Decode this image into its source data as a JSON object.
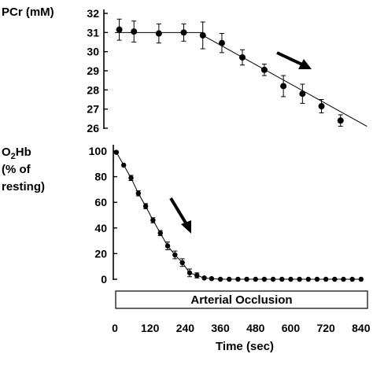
{
  "chart_data": [
    {
      "type": "line",
      "ylabel": "PCr (mM)",
      "ylim": [
        26,
        32
      ],
      "yticks": [
        26,
        27,
        28,
        29,
        30,
        31,
        32
      ],
      "xlim": [
        0,
        870
      ],
      "x": [
        0,
        45,
        105,
        165,
        225,
        285,
        345,
        405,
        465,
        525,
        585,
        645,
        705,
        765,
        825
      ],
      "series": [
        {
          "values": [
            31.15,
            31.05,
            30.95,
            31.0,
            30.85,
            null,
            30.45,
            29.7,
            29.05,
            28.2,
            27.8,
            27.15,
            26.4
          ],
          "x": [
            15,
            65,
            150,
            235,
            300,
            null,
            365,
            435,
            510,
            575,
            640,
            705,
            770
          ],
          "error": [
            0.55,
            0.55,
            0.5,
            0.45,
            0.7,
            null,
            0.5,
            0.4,
            0.3,
            0.55,
            0.5,
            0.35,
            0.3
          ]
        }
      ],
      "fit_lines": [
        {
          "x": [
            0,
            300
          ],
          "y": [
            31.0,
            31.0
          ]
        },
        {
          "x": [
            300,
            860
          ],
          "y": [
            30.85,
            26.1
          ]
        }
      ],
      "annotation": "arrow"
    },
    {
      "type": "line",
      "ylabel": [
        "O",
        "2",
        "Hb",
        "(% of",
        "resting)"
      ],
      "ylim": [
        0,
        100
      ],
      "yticks": [
        0,
        20,
        40,
        60,
        80,
        100
      ],
      "xlabel": "Time (sec)",
      "xticks": [
        0,
        120,
        240,
        360,
        480,
        600,
        720,
        840
      ],
      "xlim": [
        0,
        870
      ],
      "series": [
        {
          "x": [
            5,
            30,
            55,
            80,
            105,
            130,
            155,
            180,
            205,
            230,
            255,
            280,
            305,
            330,
            360,
            390,
            420,
            450,
            480,
            510,
            540,
            570,
            600,
            630,
            660,
            690,
            720,
            750,
            780,
            810,
            840
          ],
          "values": [
            99,
            89,
            79,
            67,
            57,
            46,
            36,
            26,
            19,
            13,
            5,
            3,
            1,
            0.5,
            0,
            0,
            0,
            0,
            0,
            0,
            0,
            0,
            0,
            0,
            0,
            0,
            0,
            0,
            0,
            0,
            0
          ],
          "error": [
            0,
            0,
            2,
            2,
            2,
            2,
            2,
            3,
            3,
            3,
            3,
            2,
            0,
            0,
            0,
            0,
            0,
            0,
            0,
            0,
            0,
            0,
            0,
            0,
            0,
            0,
            0,
            0,
            0,
            0,
            0
          ]
        }
      ],
      "annotation": "arrow",
      "bar_label": "Arterial Occlusion"
    }
  ],
  "colors": {
    "ink": "#000000",
    "bar_fill": "#ffffff"
  }
}
